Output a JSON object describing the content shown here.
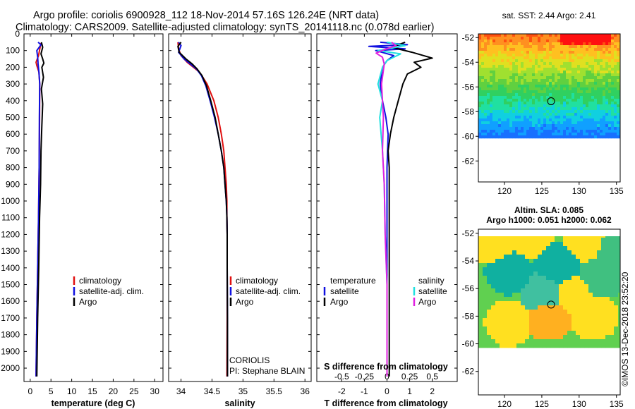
{
  "header": {
    "line1": "Argo profile: coriolis 6900928_112 18-Nov-2014 57.16S 126.24E (NRT data)",
    "line2": "Climatology: CARS2009. Satellite-adjusted climatology: synTS_20141118.nc (0.078d earlier)"
  },
  "colors": {
    "climatology": "#e01010",
    "satellite": "#1010e0",
    "argo": "#000000",
    "sal_satellite": "#20e0e0",
    "sal_argo": "#e020e0"
  },
  "chart_data": [
    {
      "type": "line",
      "name": "temperature",
      "xlabel": "temperature (deg C)",
      "ylabel": "",
      "xlim": [
        -1.5,
        32
      ],
      "ylim": [
        2080,
        0
      ],
      "xticks": [
        "0",
        "5",
        "10",
        "15",
        "20",
        "25",
        "30"
      ],
      "xtick_values": [
        0,
        5,
        10,
        15,
        20,
        25,
        30
      ],
      "yticks": [
        "0",
        "100",
        "200",
        "300",
        "400",
        "500",
        "600",
        "700",
        "800",
        "900",
        "1000",
        "1100",
        "1200",
        "1300",
        "1400",
        "1500",
        "1600",
        "1700",
        "1800",
        "1900",
        "2000"
      ],
      "ytick_values": [
        0,
        100,
        200,
        300,
        400,
        500,
        600,
        700,
        800,
        900,
        1000,
        1100,
        1200,
        1300,
        1400,
        1500,
        1600,
        1700,
        1800,
        1900,
        2000
      ],
      "legend": [
        "climatology",
        "satellite-adj. clim.",
        "Argo"
      ],
      "series": [
        {
          "name": "climatology",
          "points": [
            [
              2.6,
              55
            ],
            [
              2.4,
              80
            ],
            [
              2.0,
              130
            ],
            [
              1.4,
              170
            ],
            [
              1.6,
              190
            ],
            [
              2.1,
              230
            ],
            [
              2.3,
              300
            ],
            [
              2.25,
              500
            ],
            [
              2.15,
              800
            ],
            [
              2.0,
              1100
            ],
            [
              1.8,
              1400
            ],
            [
              1.6,
              1700
            ],
            [
              1.4,
              2050
            ]
          ]
        },
        {
          "name": "satellite-adj. clim.",
          "points": [
            [
              1.9,
              50
            ],
            [
              2.6,
              65
            ],
            [
              1.6,
              100
            ],
            [
              1.8,
              140
            ],
            [
              1.9,
              180
            ],
            [
              2.1,
              230
            ],
            [
              2.3,
              300
            ],
            [
              2.2,
              500
            ],
            [
              2.15,
              800
            ],
            [
              2.0,
              1100
            ],
            [
              1.8,
              1400
            ],
            [
              1.6,
              1700
            ],
            [
              1.4,
              2050
            ]
          ]
        },
        {
          "name": "Argo",
          "points": [
            [
              2.7,
              50
            ],
            [
              3.0,
              80
            ],
            [
              2.6,
              120
            ],
            [
              3.0,
              150
            ],
            [
              3.3,
              175
            ],
            [
              2.8,
              200
            ],
            [
              3.2,
              260
            ],
            [
              2.7,
              330
            ],
            [
              3.0,
              420
            ],
            [
              2.8,
              550
            ],
            [
              2.6,
              700
            ],
            [
              2.5,
              900
            ],
            [
              2.25,
              1100
            ],
            [
              2.05,
              1400
            ],
            [
              1.8,
              1700
            ],
            [
              1.6,
              2050
            ]
          ]
        }
      ]
    },
    {
      "type": "line",
      "name": "salinity",
      "xlabel": "salinity",
      "xlim": [
        33.8,
        36.1
      ],
      "ylim": [
        2080,
        0
      ],
      "xticks": [
        "34",
        "34.5",
        "35",
        "35.5",
        "36"
      ],
      "xtick_values": [
        34,
        34.5,
        35,
        35.5,
        36
      ],
      "legend": [
        "climatology",
        "satellite-adj. clim.",
        "Argo"
      ],
      "annotations": [
        "CORIOLIS",
        "PI: Stephane BLAIN"
      ],
      "series": [
        {
          "name": "climatology",
          "points": [
            [
              33.95,
              50
            ],
            [
              33.96,
              90
            ],
            [
              34.0,
              130
            ],
            [
              34.1,
              170
            ],
            [
              34.2,
              200
            ],
            [
              34.3,
              230
            ],
            [
              34.42,
              300
            ],
            [
              34.53,
              400
            ],
            [
              34.6,
              500
            ],
            [
              34.65,
              600
            ],
            [
              34.69,
              700
            ],
            [
              34.71,
              800
            ],
            [
              34.73,
              900
            ],
            [
              34.74,
              1000
            ],
            [
              34.74,
              1100
            ],
            [
              34.745,
              1200
            ],
            [
              34.745,
              1400
            ],
            [
              34.745,
              1700
            ],
            [
              34.74,
              2050
            ]
          ]
        },
        {
          "name": "satellite-adj. clim.",
          "points": [
            [
              33.96,
              50
            ],
            [
              34.0,
              70
            ],
            [
              33.96,
              110
            ],
            [
              34.05,
              150
            ],
            [
              34.15,
              180
            ],
            [
              34.25,
              210
            ],
            [
              34.33,
              250
            ],
            [
              34.4,
              310
            ],
            [
              34.47,
              400
            ],
            [
              34.54,
              500
            ],
            [
              34.6,
              600
            ],
            [
              34.65,
              700
            ],
            [
              34.69,
              800
            ],
            [
              34.71,
              900
            ],
            [
              34.73,
              1000
            ],
            [
              34.74,
              1100
            ],
            [
              34.745,
              1200
            ],
            [
              34.745,
              1400
            ],
            [
              34.75,
              1700
            ],
            [
              34.75,
              2050
            ]
          ]
        },
        {
          "name": "Argo",
          "points": [
            [
              34.0,
              50
            ],
            [
              33.95,
              75
            ],
            [
              33.97,
              110
            ],
            [
              34.08,
              150
            ],
            [
              34.18,
              180
            ],
            [
              34.26,
              210
            ],
            [
              34.34,
              250
            ],
            [
              34.41,
              310
            ],
            [
              34.48,
              400
            ],
            [
              34.55,
              500
            ],
            [
              34.6,
              600
            ],
            [
              34.65,
              700
            ],
            [
              34.69,
              800
            ],
            [
              34.71,
              900
            ],
            [
              34.73,
              1000
            ],
            [
              34.74,
              1100
            ],
            [
              34.745,
              1200
            ],
            [
              34.745,
              1400
            ],
            [
              34.75,
              1700
            ],
            [
              34.75,
              2050
            ]
          ]
        }
      ]
    },
    {
      "type": "line",
      "name": "difference",
      "xlabel": "T difference from climatology",
      "xlabel_top": "S difference from climatology",
      "xlim": [
        -3.1,
        3.1
      ],
      "ylim": [
        2080,
        0
      ],
      "xticks": [
        "-2",
        "-1",
        "0",
        "1",
        "2"
      ],
      "xtick_values": [
        -2,
        -1,
        0,
        1,
        2
      ],
      "xticks_s": [
        "-0.5",
        "-0.25",
        "0",
        "0.25",
        "0.5"
      ],
      "xtick_s_values": [
        -0.5,
        -0.25,
        0,
        0.25,
        0.5
      ],
      "legend_left_title": "temperature",
      "legend_left": [
        "satellite",
        "Argo"
      ],
      "legend_right_title": "salinity",
      "legend_right": [
        "satellite",
        "Argo"
      ],
      "series": [
        {
          "name": "T satellite",
          "group": "temperature",
          "points": [
            [
              -0.3,
              50
            ],
            [
              0.9,
              65
            ],
            [
              -0.8,
              75
            ],
            [
              0.8,
              90
            ],
            [
              -0.5,
              100
            ],
            [
              0.3,
              130
            ],
            [
              0.0,
              160
            ],
            [
              -0.2,
              200
            ],
            [
              -0.3,
              300
            ],
            [
              -0.2,
              400
            ],
            [
              -0.05,
              500
            ],
            [
              0.05,
              600
            ],
            [
              0.0,
              800
            ],
            [
              0.0,
              1100
            ],
            [
              0.0,
              1500
            ],
            [
              0.0,
              2050
            ]
          ]
        },
        {
          "name": "T Argo",
          "group": "temperature",
          "points": [
            [
              0.8,
              50
            ],
            [
              0.2,
              80
            ],
            [
              1.1,
              110
            ],
            [
              2.0,
              145
            ],
            [
              1.2,
              170
            ],
            [
              1.5,
              200
            ],
            [
              0.9,
              240
            ],
            [
              0.7,
              300
            ],
            [
              0.5,
              400
            ],
            [
              0.3,
              500
            ],
            [
              0.15,
              600
            ],
            [
              0.05,
              700
            ],
            [
              0.1,
              800
            ],
            [
              0.1,
              1000
            ],
            [
              0.1,
              1500
            ],
            [
              0.1,
              2050
            ]
          ]
        },
        {
          "name": "S satellite",
          "group": "salinity",
          "points": [
            [
              0.0,
              50
            ],
            [
              0.2,
              70
            ],
            [
              -0.1,
              100
            ],
            [
              0.15,
              120
            ],
            [
              0.0,
              160
            ],
            [
              -0.05,
              200
            ],
            [
              -0.1,
              300
            ],
            [
              -0.05,
              400
            ],
            [
              -0.08,
              500
            ],
            [
              -0.05,
              700
            ],
            [
              -0.03,
              900
            ],
            [
              -0.02,
              1200
            ],
            [
              0.0,
              1500
            ],
            [
              0.0,
              2050
            ]
          ]
        },
        {
          "name": "S Argo",
          "group": "salinity",
          "points": [
            [
              0.05,
              50
            ],
            [
              0.1,
              70
            ],
            [
              -0.03,
              95
            ],
            [
              -0.12,
              115
            ],
            [
              -0.05,
              140
            ],
            [
              -0.03,
              180
            ],
            [
              -0.06,
              300
            ],
            [
              -0.04,
              500
            ],
            [
              -0.05,
              700
            ],
            [
              -0.03,
              900
            ],
            [
              -0.02,
              1200
            ],
            [
              0.0,
              1500
            ],
            [
              0.0,
              2050
            ]
          ]
        }
      ]
    },
    {
      "type": "heatmap",
      "name": "sst_map",
      "title": "sat. SST: 2.44 Argo: 2.41",
      "xticks": [
        "120",
        "125",
        "130",
        "135"
      ],
      "xtick_values": [
        120,
        125,
        130,
        135
      ],
      "yticks": [
        "-52",
        "-54",
        "-56",
        "-58",
        "-60",
        "-62"
      ],
      "ytick_values": [
        -52,
        -54,
        -56,
        -58,
        -60,
        -62
      ],
      "xlim": [
        116.5,
        135.5
      ],
      "ylim": [
        -63.7,
        -51.7
      ],
      "data_bottom": -60,
      "marker": [
        126.24,
        -57.16
      ]
    },
    {
      "type": "heatmap",
      "name": "sla_map",
      "title1": "Altim. SLA: 0.085",
      "title2": "Argo h1000: 0.051 h2000: 0.062",
      "xticks": [
        "120",
        "125",
        "130",
        "135"
      ],
      "xtick_values": [
        120,
        125,
        130,
        135
      ],
      "yticks": [
        "-52",
        "-54",
        "-56",
        "-58",
        "-60",
        "-62"
      ],
      "ytick_values": [
        -52,
        -54,
        -56,
        -58,
        -60,
        -62
      ],
      "xlim": [
        116.5,
        135.5
      ],
      "ylim": [
        -63.7,
        -51.7
      ],
      "data_bottom": -60,
      "marker": [
        126.24,
        -57.16
      ]
    }
  ],
  "footer": {
    "stamp": "©IMOS 13-Dec-2018 23:52:20"
  }
}
